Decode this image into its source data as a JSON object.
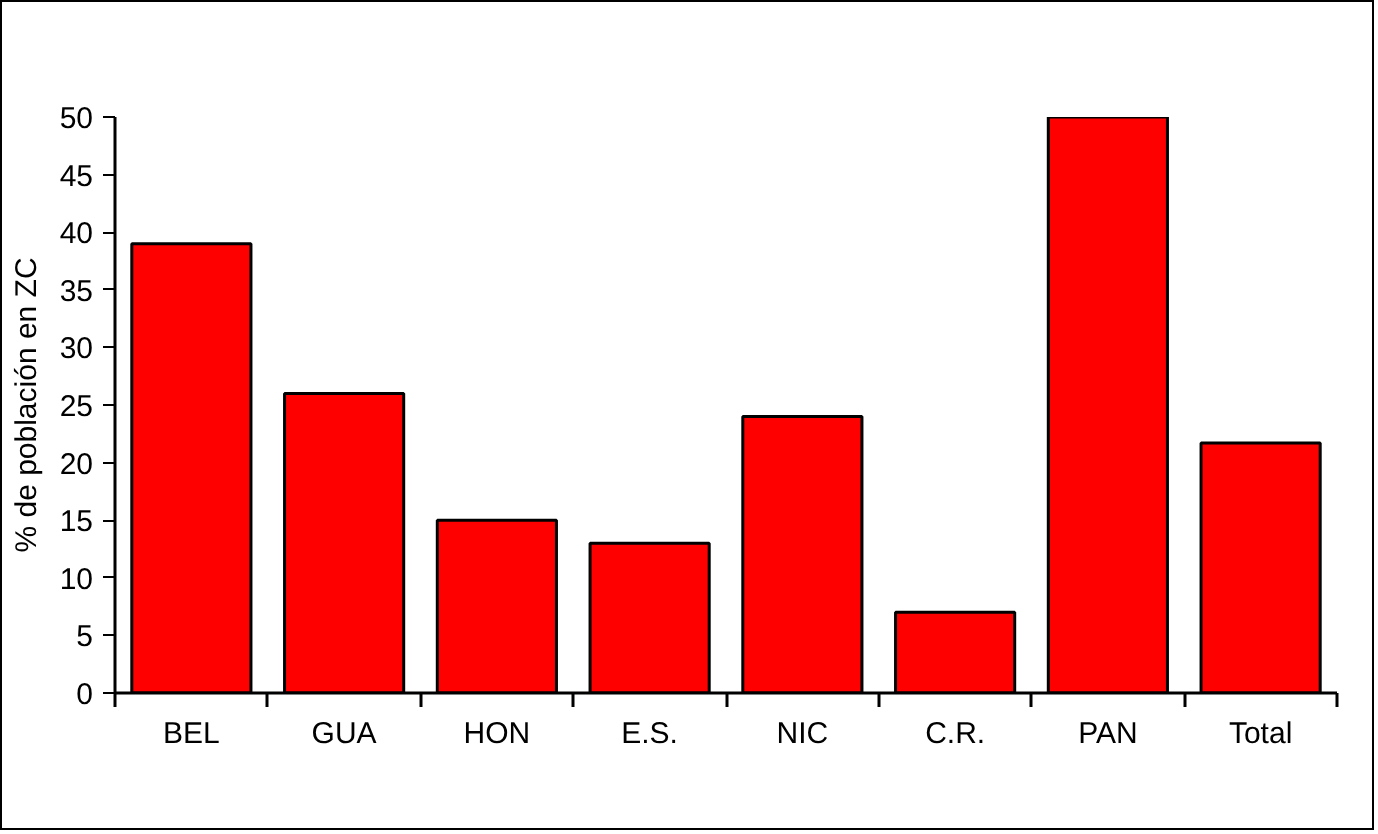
{
  "chart_data": {
    "type": "bar",
    "ylabel": "% de población en ZC",
    "categories": [
      "BEL",
      "GUA",
      "HON",
      "E.S.",
      "NIC",
      "C.R.",
      "PAN",
      "Total"
    ],
    "values": [
      39,
      26,
      15,
      13,
      24,
      7,
      50,
      21.7
    ],
    "color": "#ff0000",
    "ylim": [
      0,
      50
    ],
    "yticks": [
      0,
      5,
      10,
      15,
      20,
      25,
      30,
      35,
      40,
      45,
      50
    ],
    "grid": false
  }
}
